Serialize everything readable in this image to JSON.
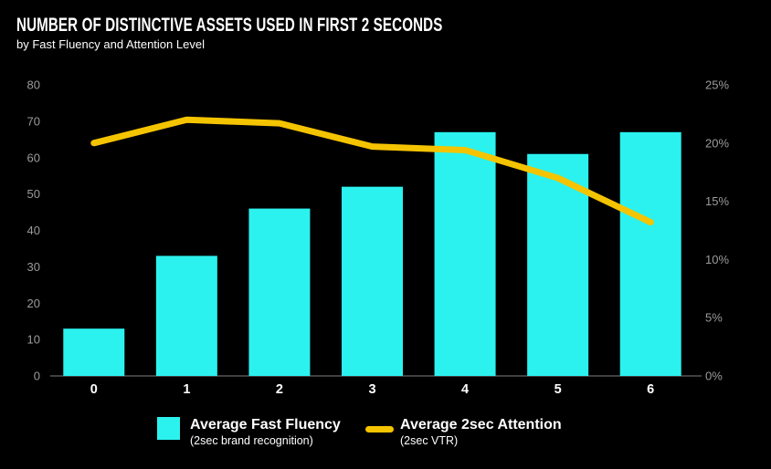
{
  "chart_data": {
    "type": "bar+line",
    "title": "NUMBER OF DISTINCTIVE ASSETS USED IN FIRST 2 SECONDS",
    "subtitle": "by Fast Fluency and Attention Level",
    "categories": [
      "0",
      "1",
      "2",
      "3",
      "4",
      "5",
      "6"
    ],
    "xlabel": "",
    "series": [
      {
        "name": "Average Fast Fluency",
        "subtitle": "(2sec brand recognition)",
        "type": "bar",
        "axis": "left",
        "color": "#2BF2EE",
        "values": [
          13,
          33,
          46,
          52,
          67,
          61,
          67
        ]
      },
      {
        "name": "Average 2sec Attention",
        "subtitle": "(2sec VTR)",
        "type": "line",
        "axis": "right",
        "color": "#F5C400",
        "values": [
          20,
          22,
          21.7,
          19.7,
          19.4,
          17,
          13.2
        ]
      }
    ],
    "left_axis": {
      "min": 0,
      "max": 80,
      "ticks": [
        "0",
        "10",
        "20",
        "30",
        "40",
        "50",
        "60",
        "70",
        "80"
      ]
    },
    "right_axis": {
      "min": 0,
      "max": 25,
      "ticks": [
        "0%",
        "5%",
        "10%",
        "15%",
        "20%",
        "25%"
      ]
    },
    "grid": false,
    "legend_position": "bottom",
    "background": "#000000",
    "text_color": "#FFFFFF",
    "tick_color": "#9B9B9B",
    "axis_line_color": "#7F7F7F"
  }
}
